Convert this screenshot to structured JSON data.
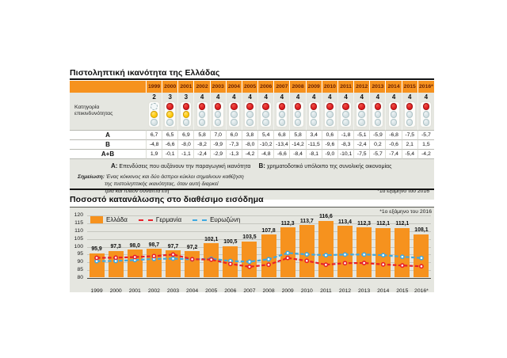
{
  "colors": {
    "orange": "#f6921e",
    "red_light": "#dd1d21",
    "yellow_light": "#ffc907",
    "grey_light": "#d4e0e3",
    "germany_line": "#e8202a",
    "eurozone_line": "#3fa9e0",
    "panel_bg": "#e5e6e0",
    "year_text": "#6b2104"
  },
  "panel1": {
    "title": "Πιστοληπτική ικανότητα της Ελλάδας",
    "row_label_line1": "Κατηγορία",
    "row_label_line2": "επικινδυνότητας",
    "years": [
      "1999",
      "2000",
      "2001",
      "2002",
      "2003",
      "2004",
      "2005",
      "2006",
      "2007",
      "2008",
      "2009",
      "2010",
      "2011",
      "2012",
      "2013",
      "2014",
      "2015",
      "2016*"
    ],
    "risk_numbers": [
      "2",
      "3",
      "3",
      "4",
      "4",
      "4",
      "4",
      "4",
      "4",
      "4",
      "4",
      "4",
      "4",
      "4",
      "4",
      "4",
      "4",
      "4"
    ],
    "lights": [
      [
        "dashed",
        "yellow",
        "grey"
      ],
      [
        "red",
        "yellow",
        "grey"
      ],
      [
        "red",
        "yellow",
        "grey"
      ],
      [
        "red",
        "grey",
        "grey"
      ],
      [
        "red",
        "grey",
        "grey"
      ],
      [
        "red",
        "grey",
        "grey"
      ],
      [
        "red",
        "grey",
        "grey"
      ],
      [
        "red",
        "grey",
        "grey"
      ],
      [
        "red",
        "grey",
        "grey"
      ],
      [
        "red",
        "grey",
        "grey"
      ],
      [
        "red",
        "grey",
        "grey"
      ],
      [
        "red",
        "grey",
        "grey"
      ],
      [
        "red",
        "grey",
        "grey"
      ],
      [
        "red",
        "grey",
        "grey"
      ],
      [
        "red",
        "grey",
        "grey"
      ],
      [
        "red",
        "grey",
        "grey"
      ],
      [
        "red",
        "grey",
        "grey"
      ],
      [
        "red",
        "grey",
        "grey"
      ]
    ],
    "rows": [
      {
        "label": "Α",
        "values": [
          "6,7",
          "6,5",
          "6,9",
          "5,8",
          "7,0",
          "6,0",
          "3,8",
          "5,4",
          "6,8",
          "5,8",
          "3,4",
          "0,6",
          "-1,8",
          "-5,1",
          "-5,9",
          "-6,8",
          "-7,5",
          "-5,7"
        ]
      },
      {
        "label": "Β",
        "values": [
          "-4,8",
          "-6,6",
          "-8,0",
          "-8,2",
          "-9,9",
          "-7,3",
          "-8,0",
          "-10,2",
          "-13,4",
          "-14,2",
          "-11,5",
          "-9,6",
          "-8,3",
          "-2,4",
          "0,2",
          "-0,6",
          "2,1",
          "1,5"
        ]
      },
      {
        "label": "Α+Β",
        "values": [
          "1,9",
          "-0,1",
          "-1,1",
          "-2,4",
          "-2,9",
          "-1,3",
          "-4,2",
          "-4,8",
          "-6,6",
          "-8,4",
          "-8,1",
          "-9,0",
          "-10,1",
          "-7,5",
          "-5,7",
          "-7,4",
          "-5,4",
          "-4,2"
        ]
      }
    ],
    "legend_a_marker": "Α:",
    "legend_a_text": "Επενδύσεις που αυξάνουν την παραγωγική ικανότητα",
    "legend_b_marker": "Β:",
    "legend_b_text": "χρηματοδοτικό υπόλοιπο της συνολικής οικονομίας",
    "note_label": "Σημείωση:",
    "note_lines": [
      "Ένας κόκκινος και δύο άσπροι κύκλοι σημαίνουν καθίζηση",
      "της πιστοληπτικής ικανότητας, όταν αυτή διαρκεί",
      "τρία και πλέον συναπτά έτη"
    ],
    "footnote": "*1ο εξάμηνο του 2016"
  },
  "panel2": {
    "title": "Ποσοστό κατανάλωσης στο διαθέσιμο εισόδημα",
    "footnote": "*1ο εξάμηνο του 2016"
  },
  "chart_data": {
    "type": "bar",
    "title": "Ποσοστό κατανάλωσης στο διαθέσιμο εισόδημα",
    "categories": [
      "1999",
      "2000",
      "2001",
      "2002",
      "2003",
      "2004",
      "2005",
      "2006",
      "2007",
      "2008",
      "2009",
      "2010",
      "2011",
      "2012",
      "2013",
      "2014",
      "2015",
      "2016*"
    ],
    "series": [
      {
        "name": "Ελλάδα",
        "type": "bar",
        "color": "#f6921e",
        "values": [
          95.9,
          97.3,
          98.0,
          98.7,
          97.7,
          97.2,
          102.1,
          100.5,
          103.5,
          107.8,
          112.3,
          113.7,
          116.6,
          113.4,
          112.3,
          112.1,
          112.1,
          108.1
        ],
        "labels": [
          "95,9",
          "97,3",
          "98,0",
          "98,7",
          "97,7",
          "97,2",
          "102,1",
          "100,5",
          "103,5",
          "107,8",
          "112,3",
          "113,7",
          "116,6",
          "113,4",
          "112,3",
          "112,1",
          "112,1",
          "108,1"
        ]
      },
      {
        "name": "Γερμανία",
        "type": "line",
        "style": "dashed",
        "color": "#e8202a",
        "values": [
          92.9,
          93.0,
          93.4,
          94.0,
          95.0,
          92.0,
          91.8,
          89.0,
          87.2,
          88.5,
          92.8,
          91.0,
          88.5,
          89.5,
          89.6,
          88.7,
          88.0,
          87.5
        ]
      },
      {
        "name": "Ευρωζώνη",
        "type": "line",
        "style": "dashed",
        "color": "#3fa9e0",
        "values": [
          90.8,
          90.9,
          91.5,
          92.2,
          92.4,
          91.9,
          92.3,
          90.9,
          90.4,
          92.0,
          96.0,
          95.1,
          94.6,
          95.0,
          95.0,
          94.6,
          93.6,
          92.8
        ]
      }
    ],
    "ylim": [
      80,
      120
    ],
    "yticks": [
      80,
      85,
      90,
      95,
      100,
      105,
      110,
      115,
      120
    ],
    "grid": true,
    "legend_position": "top-left",
    "value_labels": true
  }
}
